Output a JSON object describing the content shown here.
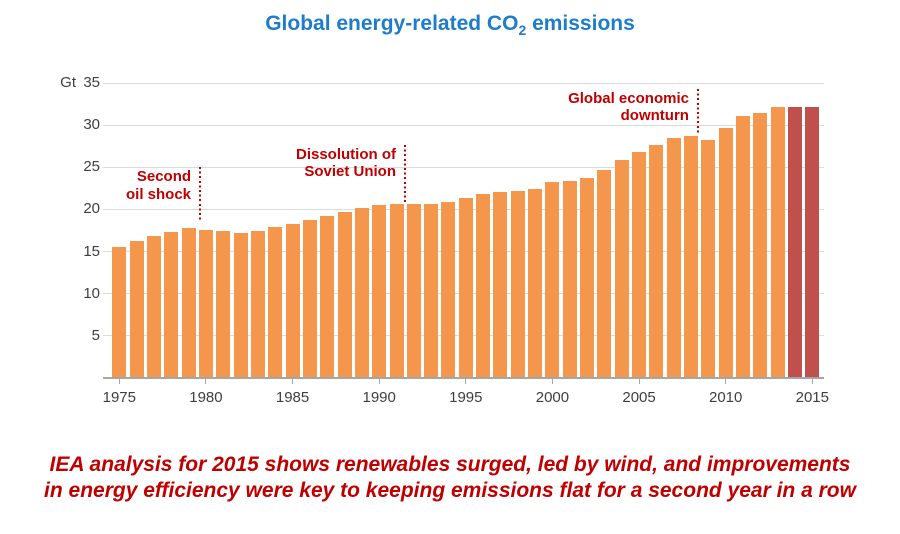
{
  "title": {
    "prefix": "Global energy-related CO",
    "subscript": "2",
    "suffix": " emissions"
  },
  "chart_data": {
    "type": "bar",
    "title": "Global energy-related CO2 emissions",
    "unit": "Gt",
    "categories": [
      1975,
      1976,
      1977,
      1978,
      1979,
      1980,
      1981,
      1982,
      1983,
      1984,
      1985,
      1986,
      1987,
      1988,
      1989,
      1990,
      1991,
      1992,
      1993,
      1994,
      1995,
      1996,
      1997,
      1998,
      1999,
      2000,
      2001,
      2002,
      2003,
      2004,
      2005,
      2006,
      2007,
      2008,
      2009,
      2010,
      2011,
      2012,
      2013,
      2014,
      2015
    ],
    "values": [
      15.5,
      16.3,
      16.8,
      17.3,
      17.8,
      17.6,
      17.4,
      17.2,
      17.4,
      17.9,
      18.3,
      18.7,
      19.2,
      19.7,
      20.2,
      20.5,
      20.7,
      20.6,
      20.6,
      20.9,
      21.4,
      21.8,
      22.1,
      22.2,
      22.4,
      23.2,
      23.4,
      23.7,
      24.7,
      25.9,
      26.8,
      27.7,
      28.5,
      28.7,
      28.2,
      29.7,
      31.1,
      31.4,
      32.1,
      32.1,
      32.1
    ],
    "ylim": [
      0,
      35
    ],
    "yticks": [
      35,
      30,
      25,
      20,
      15,
      10,
      5
    ],
    "xticks": [
      1975,
      1980,
      1985,
      1990,
      1995,
      2000,
      2005,
      2010,
      2015
    ],
    "grid": "horizontal",
    "highlight_years": [
      2014,
      2015
    ],
    "annotations": [
      {
        "line1": "Second",
        "line2": "oil shock",
        "x_year": 1979.66,
        "line_top_gt": 25.0,
        "line_bottom_gt": 18.5
      },
      {
        "line1": "Dissolution of",
        "line2": "Soviet Union",
        "x_year": 1991.49,
        "line_top_gt": 27.7,
        "line_bottom_gt": 20.9
      },
      {
        "line1": "Global economic",
        "line2": "downturn",
        "x_year": 2008.4,
        "line_top_gt": 34.3,
        "line_bottom_gt": 28.8
      }
    ],
    "colors": {
      "bar": "#F4974C",
      "bar_highlight": "#C0504D",
      "title": "#1D7CCB",
      "annotation": "#C00000",
      "grid": "#DBDBDB",
      "axis": "#A6A6A6",
      "tick_text": "#3F3F3F",
      "footnote": "#C00000"
    }
  },
  "footnote": {
    "line1": "IEA analysis for 2015 shows renewables surged, led by wind, and improvements",
    "line2": "in energy efficiency were key to keeping emissions flat for a second year in a row"
  }
}
